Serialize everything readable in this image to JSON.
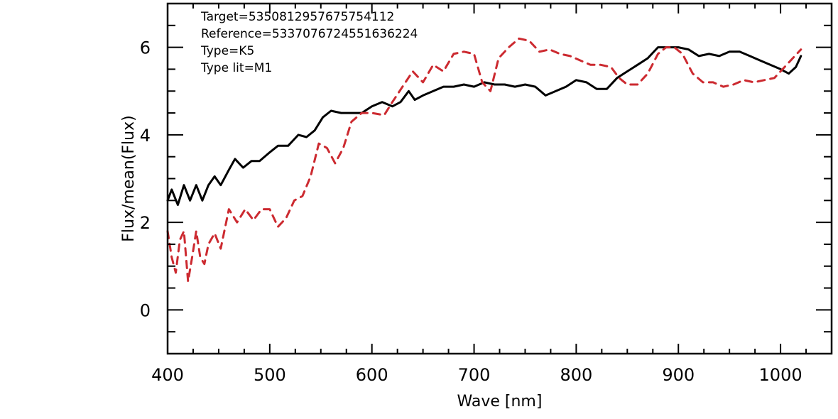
{
  "chart_data": {
    "type": "line",
    "title": "",
    "xlabel": "Wave [nm]",
    "ylabel": "Flux/mean(Flux)",
    "xlim": [
      400,
      1050
    ],
    "ylim": [
      -1,
      7
    ],
    "x_ticks": [
      400,
      500,
      600,
      700,
      800,
      900,
      1000
    ],
    "y_ticks": [
      0,
      2,
      4,
      6
    ],
    "grid": false,
    "annotations": [
      "Target=5350812957675754112",
      "Reference=5337076724551636224",
      "Type=K5",
      "Type lit=M1"
    ],
    "series": [
      {
        "color": "#000000",
        "style": "solid",
        "points": [
          [
            400,
            2.5
          ],
          [
            404,
            2.75
          ],
          [
            410,
            2.4
          ],
          [
            416,
            2.85
          ],
          [
            422,
            2.5
          ],
          [
            428,
            2.85
          ],
          [
            434,
            2.5
          ],
          [
            440,
            2.85
          ],
          [
            446,
            3.05
          ],
          [
            452,
            2.85
          ],
          [
            460,
            3.2
          ],
          [
            466,
            3.45
          ],
          [
            474,
            3.25
          ],
          [
            482,
            3.4
          ],
          [
            490,
            3.4
          ],
          [
            500,
            3.6
          ],
          [
            508,
            3.75
          ],
          [
            518,
            3.75
          ],
          [
            528,
            4.0
          ],
          [
            536,
            3.95
          ],
          [
            544,
            4.1
          ],
          [
            552,
            4.4
          ],
          [
            560,
            4.55
          ],
          [
            570,
            4.5
          ],
          [
            580,
            4.5
          ],
          [
            590,
            4.5
          ],
          [
            600,
            4.65
          ],
          [
            610,
            4.75
          ],
          [
            620,
            4.65
          ],
          [
            628,
            4.75
          ],
          [
            636,
            5.0
          ],
          [
            642,
            4.8
          ],
          [
            650,
            4.9
          ],
          [
            660,
            5.0
          ],
          [
            670,
            5.1
          ],
          [
            680,
            5.1
          ],
          [
            690,
            5.15
          ],
          [
            700,
            5.1
          ],
          [
            710,
            5.2
          ],
          [
            720,
            5.15
          ],
          [
            730,
            5.15
          ],
          [
            740,
            5.1
          ],
          [
            750,
            5.15
          ],
          [
            760,
            5.1
          ],
          [
            770,
            4.9
          ],
          [
            780,
            5.0
          ],
          [
            790,
            5.1
          ],
          [
            800,
            5.25
          ],
          [
            810,
            5.2
          ],
          [
            820,
            5.05
          ],
          [
            830,
            5.05
          ],
          [
            840,
            5.3
          ],
          [
            850,
            5.45
          ],
          [
            860,
            5.6
          ],
          [
            870,
            5.75
          ],
          [
            880,
            6.0
          ],
          [
            890,
            6.0
          ],
          [
            900,
            6.0
          ],
          [
            910,
            5.95
          ],
          [
            920,
            5.8
          ],
          [
            930,
            5.85
          ],
          [
            940,
            5.8
          ],
          [
            950,
            5.9
          ],
          [
            960,
            5.9
          ],
          [
            970,
            5.8
          ],
          [
            980,
            5.7
          ],
          [
            990,
            5.6
          ],
          [
            1000,
            5.5
          ],
          [
            1008,
            5.4
          ],
          [
            1015,
            5.55
          ],
          [
            1020,
            5.8
          ]
        ]
      },
      {
        "color": "#cc2a30",
        "style": "dashed",
        "points": [
          [
            400,
            1.8
          ],
          [
            404,
            1.2
          ],
          [
            408,
            0.85
          ],
          [
            412,
            1.6
          ],
          [
            416,
            1.8
          ],
          [
            420,
            0.65
          ],
          [
            424,
            1.2
          ],
          [
            428,
            1.8
          ],
          [
            432,
            1.2
          ],
          [
            436,
            1.05
          ],
          [
            440,
            1.5
          ],
          [
            446,
            1.75
          ],
          [
            452,
            1.4
          ],
          [
            460,
            2.3
          ],
          [
            468,
            2.0
          ],
          [
            476,
            2.3
          ],
          [
            484,
            2.05
          ],
          [
            492,
            2.3
          ],
          [
            500,
            2.3
          ],
          [
            508,
            1.9
          ],
          [
            516,
            2.1
          ],
          [
            524,
            2.5
          ],
          [
            532,
            2.6
          ],
          [
            540,
            3.05
          ],
          [
            548,
            3.8
          ],
          [
            556,
            3.7
          ],
          [
            564,
            3.35
          ],
          [
            572,
            3.7
          ],
          [
            580,
            4.3
          ],
          [
            590,
            4.5
          ],
          [
            600,
            4.5
          ],
          [
            612,
            4.45
          ],
          [
            620,
            4.75
          ],
          [
            630,
            5.1
          ],
          [
            640,
            5.45
          ],
          [
            650,
            5.2
          ],
          [
            660,
            5.6
          ],
          [
            670,
            5.45
          ],
          [
            680,
            5.85
          ],
          [
            690,
            5.9
          ],
          [
            700,
            5.85
          ],
          [
            708,
            5.2
          ],
          [
            716,
            5.0
          ],
          [
            724,
            5.75
          ],
          [
            734,
            6.0
          ],
          [
            744,
            6.2
          ],
          [
            754,
            6.15
          ],
          [
            764,
            5.9
          ],
          [
            774,
            5.95
          ],
          [
            784,
            5.85
          ],
          [
            794,
            5.8
          ],
          [
            804,
            5.7
          ],
          [
            814,
            5.6
          ],
          [
            824,
            5.6
          ],
          [
            834,
            5.55
          ],
          [
            842,
            5.3
          ],
          [
            850,
            5.15
          ],
          [
            860,
            5.15
          ],
          [
            870,
            5.4
          ],
          [
            880,
            5.85
          ],
          [
            888,
            6.0
          ],
          [
            896,
            6.0
          ],
          [
            904,
            5.85
          ],
          [
            914,
            5.4
          ],
          [
            924,
            5.2
          ],
          [
            934,
            5.2
          ],
          [
            944,
            5.1
          ],
          [
            954,
            5.15
          ],
          [
            964,
            5.25
          ],
          [
            974,
            5.2
          ],
          [
            984,
            5.25
          ],
          [
            994,
            5.3
          ],
          [
            1004,
            5.55
          ],
          [
            1012,
            5.75
          ],
          [
            1020,
            5.95
          ]
        ]
      }
    ]
  }
}
